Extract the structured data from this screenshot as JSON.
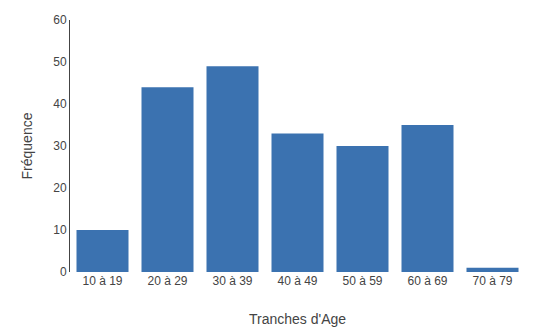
{
  "chart_data": {
    "type": "bar",
    "categories": [
      "10 à 19",
      "20 à 29",
      "30 à 39",
      "40 à 49",
      "50 à 59",
      "60 à 69",
      "70 à 79"
    ],
    "values": [
      10,
      44,
      49,
      33,
      30,
      35,
      1
    ],
    "color": "#3B72B0",
    "xlabel": "Tranches d'Age",
    "ylabel": "Fréquence",
    "ylim": [
      0,
      60
    ],
    "yticks": [
      0,
      10,
      20,
      30,
      40,
      50,
      60
    ],
    "grid": false
  }
}
